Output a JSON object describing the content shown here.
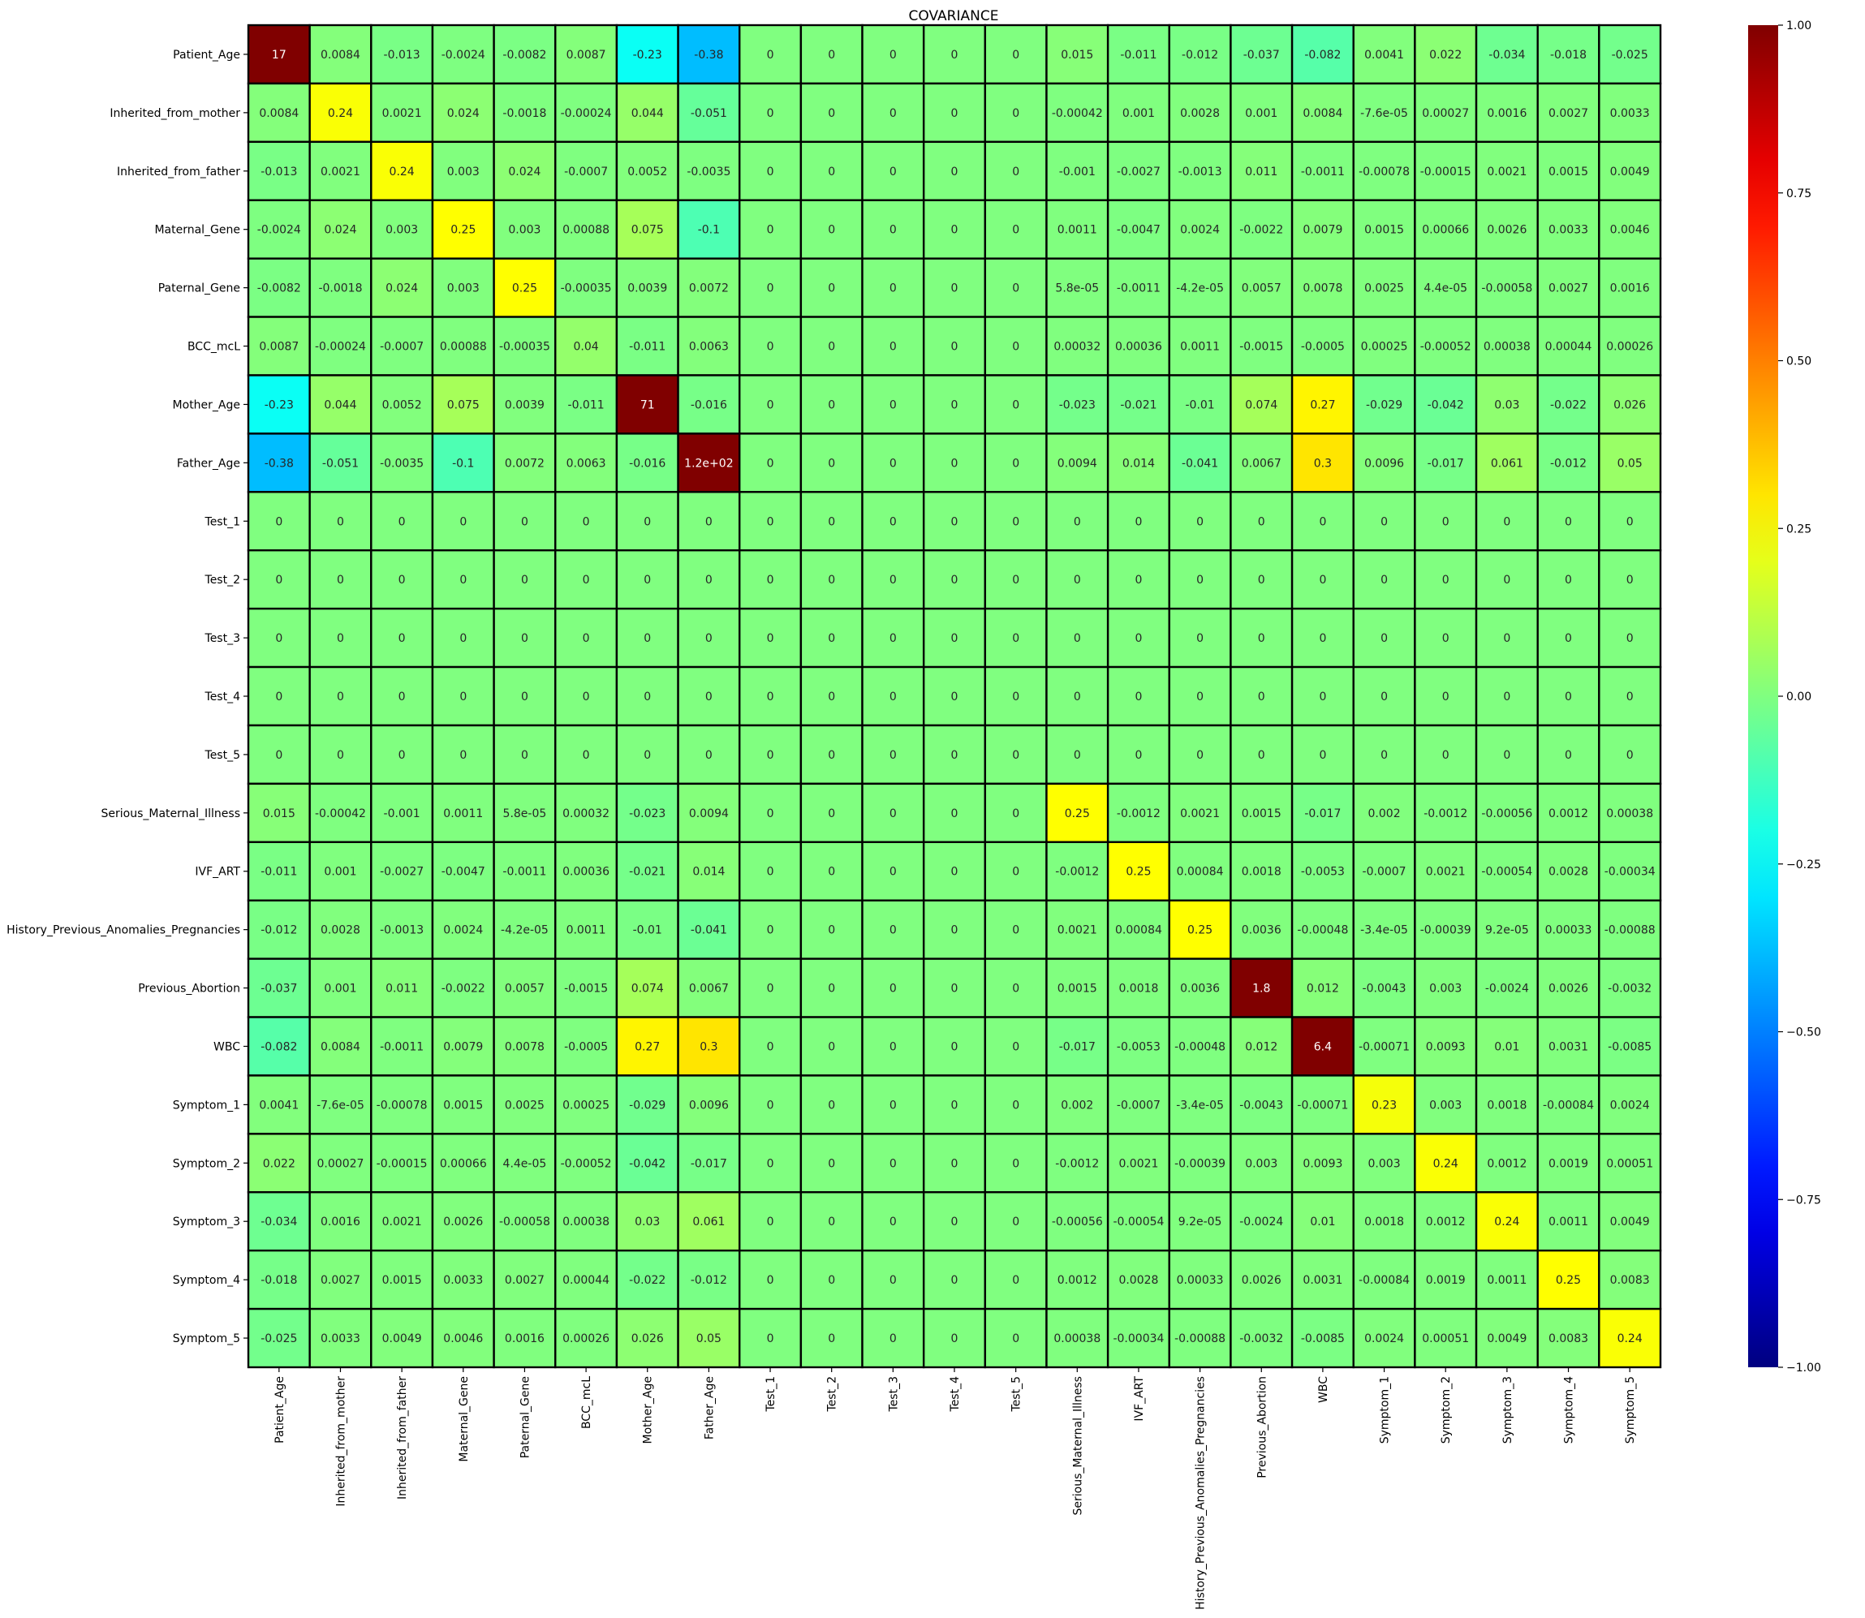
{
  "chart_data": {
    "type": "heatmap",
    "title": "COVARIANCE",
    "xlabel": "",
    "ylabel": "",
    "colormap": "jet",
    "vmin": -1.0,
    "vmax": 1.0,
    "colorbar_ticks": [
      -1.0,
      -0.75,
      -0.5,
      -0.25,
      0.0,
      0.25,
      0.5,
      0.75,
      1.0
    ],
    "colorbar_tick_labels": [
      "−1.00",
      "−0.75",
      "−0.50",
      "−0.25",
      "0.00",
      "0.25",
      "0.50",
      "0.75",
      "1.00"
    ],
    "legend_position": "right",
    "categories": [
      "Patient_Age",
      "Inherited_from_mother",
      "Inherited_from_father",
      "Maternal_Gene",
      "Paternal_Gene",
      "BCC_mcL",
      "Mother_Age",
      "Father_Age",
      "Test_1",
      "Test_2",
      "Test_3",
      "Test_4",
      "Test_5",
      "Serious_Maternal_Illness",
      "IVF_ART",
      "History_Previous_Anomalies_Pregnancies",
      "Previous_Abortion",
      "WBC",
      "Symptom_1",
      "Symptom_2",
      "Symptom_3",
      "Symptom_4",
      "Symptom_5"
    ],
    "values": [
      [
        17,
        0.0084,
        -0.013,
        -0.0024,
        -0.0082,
        0.0087,
        -0.23,
        -0.38,
        0,
        0,
        0,
        0,
        0,
        0.015,
        -0.011,
        -0.012,
        -0.037,
        -0.082,
        0.0041,
        0.022,
        -0.034,
        -0.018,
        -0.025
      ],
      [
        0.0084,
        0.24,
        0.0021,
        0.024,
        -0.0018,
        -0.00024,
        0.044,
        -0.051,
        0,
        0,
        0,
        0,
        0,
        -0.00042,
        0.001,
        0.0028,
        0.001,
        0.0084,
        -7.6e-05,
        0.00027,
        0.0016,
        0.0027,
        0.0033
      ],
      [
        -0.013,
        0.0021,
        0.24,
        0.003,
        0.024,
        -0.0007,
        0.0052,
        -0.0035,
        0,
        0,
        0,
        0,
        0,
        -0.001,
        -0.0027,
        -0.0013,
        0.011,
        -0.0011,
        -0.00078,
        -0.00015,
        0.0021,
        0.0015,
        0.0049
      ],
      [
        -0.0024,
        0.024,
        0.003,
        0.25,
        0.003,
        0.00088,
        0.075,
        -0.1,
        0,
        0,
        0,
        0,
        0,
        0.0011,
        -0.0047,
        0.0024,
        -0.0022,
        0.0079,
        0.0015,
        0.00066,
        0.0026,
        0.0033,
        0.0046
      ],
      [
        -0.0082,
        -0.0018,
        0.024,
        0.003,
        0.25,
        -0.00035,
        0.0039,
        0.0072,
        0,
        0,
        0,
        0,
        0,
        5.8e-05,
        -0.0011,
        -4.2e-05,
        0.0057,
        0.0078,
        0.0025,
        4.4e-05,
        -0.00058,
        0.0027,
        0.0016
      ],
      [
        0.0087,
        -0.00024,
        -0.0007,
        0.00088,
        -0.00035,
        0.04,
        -0.011,
        0.0063,
        0,
        0,
        0,
        0,
        0,
        0.00032,
        0.00036,
        0.0011,
        -0.0015,
        -0.0005,
        0.00025,
        -0.00052,
        0.00038,
        0.00044,
        0.00026
      ],
      [
        -0.23,
        0.044,
        0.0052,
        0.075,
        0.0039,
        -0.011,
        71,
        -0.016,
        0,
        0,
        0,
        0,
        0,
        -0.023,
        -0.021,
        -0.01,
        0.074,
        0.27,
        -0.029,
        -0.042,
        0.03,
        -0.022,
        0.026
      ],
      [
        -0.38,
        -0.051,
        -0.0035,
        -0.1,
        0.0072,
        0.0063,
        -0.016,
        120,
        0,
        0,
        0,
        0,
        0,
        0.0094,
        0.014,
        -0.041,
        0.0067,
        0.3,
        0.0096,
        -0.017,
        0.061,
        -0.012,
        0.05
      ],
      [
        0,
        0,
        0,
        0,
        0,
        0,
        0,
        0,
        0,
        0,
        0,
        0,
        0,
        0,
        0,
        0,
        0,
        0,
        0,
        0,
        0,
        0,
        0
      ],
      [
        0,
        0,
        0,
        0,
        0,
        0,
        0,
        0,
        0,
        0,
        0,
        0,
        0,
        0,
        0,
        0,
        0,
        0,
        0,
        0,
        0,
        0,
        0
      ],
      [
        0,
        0,
        0,
        0,
        0,
        0,
        0,
        0,
        0,
        0,
        0,
        0,
        0,
        0,
        0,
        0,
        0,
        0,
        0,
        0,
        0,
        0,
        0
      ],
      [
        0,
        0,
        0,
        0,
        0,
        0,
        0,
        0,
        0,
        0,
        0,
        0,
        0,
        0,
        0,
        0,
        0,
        0,
        0,
        0,
        0,
        0,
        0
      ],
      [
        0,
        0,
        0,
        0,
        0,
        0,
        0,
        0,
        0,
        0,
        0,
        0,
        0,
        0,
        0,
        0,
        0,
        0,
        0,
        0,
        0,
        0,
        0
      ],
      [
        0.015,
        -0.00042,
        -0.001,
        0.0011,
        5.8e-05,
        0.00032,
        -0.023,
        0.0094,
        0,
        0,
        0,
        0,
        0,
        0.25,
        -0.0012,
        0.0021,
        0.0015,
        -0.017,
        0.002,
        -0.0012,
        -0.00056,
        0.0012,
        0.00038
      ],
      [
        -0.011,
        0.001,
        -0.0027,
        -0.0047,
        -0.0011,
        0.00036,
        -0.021,
        0.014,
        0,
        0,
        0,
        0,
        0,
        -0.0012,
        0.25,
        0.00084,
        0.0018,
        -0.0053,
        -0.0007,
        0.0021,
        -0.00054,
        0.0028,
        -0.00034
      ],
      [
        -0.012,
        0.0028,
        -0.0013,
        0.0024,
        -4.2e-05,
        0.0011,
        -0.01,
        -0.041,
        0,
        0,
        0,
        0,
        0,
        0.0021,
        0.00084,
        0.25,
        0.0036,
        -0.00048,
        -3.4e-05,
        -0.00039,
        9.2e-05,
        0.00033,
        -0.00088
      ],
      [
        -0.037,
        0.001,
        0.011,
        -0.0022,
        0.0057,
        -0.0015,
        0.074,
        0.0067,
        0,
        0,
        0,
        0,
        0,
        0.0015,
        0.0018,
        0.0036,
        1.8,
        0.012,
        -0.0043,
        0.003,
        -0.0024,
        0.0026,
        -0.0032
      ],
      [
        -0.082,
        0.0084,
        -0.0011,
        0.0079,
        0.0078,
        -0.0005,
        0.27,
        0.3,
        0,
        0,
        0,
        0,
        0,
        -0.017,
        -0.0053,
        -0.00048,
        0.012,
        6.4,
        -0.00071,
        0.0093,
        0.01,
        0.0031,
        -0.0085
      ],
      [
        0.0041,
        -7.6e-05,
        -0.00078,
        0.0015,
        0.0025,
        0.00025,
        -0.029,
        0.0096,
        0,
        0,
        0,
        0,
        0,
        0.002,
        -0.0007,
        -3.4e-05,
        -0.0043,
        -0.00071,
        0.23,
        0.003,
        0.0018,
        -0.00084,
        0.0024
      ],
      [
        0.022,
        0.00027,
        -0.00015,
        0.00066,
        4.4e-05,
        -0.00052,
        -0.042,
        -0.017,
        0,
        0,
        0,
        0,
        0,
        -0.0012,
        0.0021,
        -0.00039,
        0.003,
        0.0093,
        0.003,
        0.24,
        0.0012,
        0.0019,
        0.00051
      ],
      [
        -0.034,
        0.0016,
        0.0021,
        0.0026,
        -0.00058,
        0.00038,
        0.03,
        0.061,
        0,
        0,
        0,
        0,
        0,
        -0.00056,
        -0.00054,
        9.2e-05,
        -0.0024,
        0.01,
        0.0018,
        0.0012,
        0.24,
        0.0011,
        0.0049
      ],
      [
        -0.018,
        0.0027,
        0.0015,
        0.0033,
        0.0027,
        0.00044,
        -0.022,
        -0.012,
        0,
        0,
        0,
        0,
        0,
        0.0012,
        0.0028,
        0.00033,
        0.0026,
        0.0031,
        -0.00084,
        0.0019,
        0.0011,
        0.25,
        0.0083
      ],
      [
        -0.025,
        0.0033,
        0.0049,
        0.0046,
        0.0016,
        0.00026,
        0.026,
        0.05,
        0,
        0,
        0,
        0,
        0,
        0.00038,
        -0.00034,
        -0.00088,
        -0.0032,
        -0.0085,
        0.0024,
        0.00051,
        0.0049,
        0.0083,
        0.24
      ]
    ],
    "labels": [
      [
        "17",
        "0.0084",
        "-0.013",
        "-0.0024",
        "-0.0082",
        "0.0087",
        "-0.23",
        "-0.38",
        "0",
        "0",
        "0",
        "0",
        "0",
        "0.015",
        "-0.011",
        "-0.012",
        "-0.037",
        "-0.082",
        "0.0041",
        "0.022",
        "-0.034",
        "-0.018",
        "-0.025"
      ],
      [
        "0.0084",
        "0.24",
        "0.0021",
        "0.024",
        "-0.0018",
        "-0.00024",
        "0.044",
        "-0.051",
        "0",
        "0",
        "0",
        "0",
        "0",
        "-0.00042",
        "0.001",
        "0.0028",
        "0.001",
        "0.0084",
        "-7.6e-05",
        "0.00027",
        "0.0016",
        "0.0027",
        "0.0033"
      ],
      [
        "-0.013",
        "0.0021",
        "0.24",
        "0.003",
        "0.024",
        "-0.0007",
        "0.0052",
        "-0.0035",
        "0",
        "0",
        "0",
        "0",
        "0",
        "-0.001",
        "-0.0027",
        "-0.0013",
        "0.011",
        "-0.0011",
        "-0.00078",
        "-0.00015",
        "0.0021",
        "0.0015",
        "0.0049"
      ],
      [
        "-0.0024",
        "0.024",
        "0.003",
        "0.25",
        "0.003",
        "0.00088",
        "0.075",
        "-0.1",
        "0",
        "0",
        "0",
        "0",
        "0",
        "0.0011",
        "-0.0047",
        "0.0024",
        "-0.0022",
        "0.0079",
        "0.0015",
        "0.00066",
        "0.0026",
        "0.0033",
        "0.0046"
      ],
      [
        "-0.0082",
        "-0.0018",
        "0.024",
        "0.003",
        "0.25",
        "-0.00035",
        "0.0039",
        "0.0072",
        "0",
        "0",
        "0",
        "0",
        "0",
        "5.8e-05",
        "-0.0011",
        "-4.2e-05",
        "0.0057",
        "0.0078",
        "0.0025",
        "4.4e-05",
        "-0.00058",
        "0.0027",
        "0.0016"
      ],
      [
        "0.0087",
        "-0.00024",
        "-0.0007",
        "0.00088",
        "-0.00035",
        "0.04",
        "-0.011",
        "0.0063",
        "0",
        "0",
        "0",
        "0",
        "0",
        "0.00032",
        "0.00036",
        "0.0011",
        "-0.0015",
        "-0.0005",
        "0.00025",
        "-0.00052",
        "0.00038",
        "0.00044",
        "0.00026"
      ],
      [
        "-0.23",
        "0.044",
        "0.0052",
        "0.075",
        "0.0039",
        "-0.011",
        "71",
        "-0.016",
        "0",
        "0",
        "0",
        "0",
        "0",
        "-0.023",
        "-0.021",
        "-0.01",
        "0.074",
        "0.27",
        "-0.029",
        "-0.042",
        "0.03",
        "-0.022",
        "0.026"
      ],
      [
        "-0.38",
        "-0.051",
        "-0.0035",
        "-0.1",
        "0.0072",
        "0.0063",
        "-0.016",
        "1.2e+02",
        "0",
        "0",
        "0",
        "0",
        "0",
        "0.0094",
        "0.014",
        "-0.041",
        "0.0067",
        "0.3",
        "0.0096",
        "-0.017",
        "0.061",
        "-0.012",
        "0.05"
      ],
      [
        "0",
        "0",
        "0",
        "0",
        "0",
        "0",
        "0",
        "0",
        "0",
        "0",
        "0",
        "0",
        "0",
        "0",
        "0",
        "0",
        "0",
        "0",
        "0",
        "0",
        "0",
        "0",
        "0"
      ],
      [
        "0",
        "0",
        "0",
        "0",
        "0",
        "0",
        "0",
        "0",
        "0",
        "0",
        "0",
        "0",
        "0",
        "0",
        "0",
        "0",
        "0",
        "0",
        "0",
        "0",
        "0",
        "0",
        "0"
      ],
      [
        "0",
        "0",
        "0",
        "0",
        "0",
        "0",
        "0",
        "0",
        "0",
        "0",
        "0",
        "0",
        "0",
        "0",
        "0",
        "0",
        "0",
        "0",
        "0",
        "0",
        "0",
        "0",
        "0"
      ],
      [
        "0",
        "0",
        "0",
        "0",
        "0",
        "0",
        "0",
        "0",
        "0",
        "0",
        "0",
        "0",
        "0",
        "0",
        "0",
        "0",
        "0",
        "0",
        "0",
        "0",
        "0",
        "0",
        "0"
      ],
      [
        "0",
        "0",
        "0",
        "0",
        "0",
        "0",
        "0",
        "0",
        "0",
        "0",
        "0",
        "0",
        "0",
        "0",
        "0",
        "0",
        "0",
        "0",
        "0",
        "0",
        "0",
        "0",
        "0"
      ],
      [
        "0.015",
        "-0.00042",
        "-0.001",
        "0.0011",
        "5.8e-05",
        "0.00032",
        "-0.023",
        "0.0094",
        "0",
        "0",
        "0",
        "0",
        "0",
        "0.25",
        "-0.0012",
        "0.0021",
        "0.0015",
        "-0.017",
        "0.002",
        "-0.0012",
        "-0.00056",
        "0.0012",
        "0.00038"
      ],
      [
        "-0.011",
        "0.001",
        "-0.0027",
        "-0.0047",
        "-0.0011",
        "0.00036",
        "-0.021",
        "0.014",
        "0",
        "0",
        "0",
        "0",
        "0",
        "-0.0012",
        "0.25",
        "0.00084",
        "0.0018",
        "-0.0053",
        "-0.0007",
        "0.0021",
        "-0.00054",
        "0.0028",
        "-0.00034"
      ],
      [
        "-0.012",
        "0.0028",
        "-0.0013",
        "0.0024",
        "-4.2e-05",
        "0.0011",
        "-0.01",
        "-0.041",
        "0",
        "0",
        "0",
        "0",
        "0",
        "0.0021",
        "0.00084",
        "0.25",
        "0.0036",
        "-0.00048",
        "-3.4e-05",
        "-0.00039",
        "9.2e-05",
        "0.00033",
        "-0.00088"
      ],
      [
        "-0.037",
        "0.001",
        "0.011",
        "-0.0022",
        "0.0057",
        "-0.0015",
        "0.074",
        "0.0067",
        "0",
        "0",
        "0",
        "0",
        "0",
        "0.0015",
        "0.0018",
        "0.0036",
        "1.8",
        "0.012",
        "-0.0043",
        "0.003",
        "-0.0024",
        "0.0026",
        "-0.0032"
      ],
      [
        "-0.082",
        "0.0084",
        "-0.0011",
        "0.0079",
        "0.0078",
        "-0.0005",
        "0.27",
        "0.3",
        "0",
        "0",
        "0",
        "0",
        "0",
        "-0.017",
        "-0.0053",
        "-0.00048",
        "0.012",
        "6.4",
        "-0.00071",
        "0.0093",
        "0.01",
        "0.0031",
        "-0.0085"
      ],
      [
        "0.0041",
        "-7.6e-05",
        "-0.00078",
        "0.0015",
        "0.0025",
        "0.00025",
        "-0.029",
        "0.0096",
        "0",
        "0",
        "0",
        "0",
        "0",
        "0.002",
        "-0.0007",
        "-3.4e-05",
        "-0.0043",
        "-0.00071",
        "0.23",
        "0.003",
        "0.0018",
        "-0.00084",
        "0.0024"
      ],
      [
        "0.022",
        "0.00027",
        "-0.00015",
        "0.00066",
        "4.4e-05",
        "-0.00052",
        "-0.042",
        "-0.017",
        "0",
        "0",
        "0",
        "0",
        "0",
        "-0.0012",
        "0.0021",
        "-0.00039",
        "0.003",
        "0.0093",
        "0.003",
        "0.24",
        "0.0012",
        "0.0019",
        "0.00051"
      ],
      [
        "-0.034",
        "0.0016",
        "0.0021",
        "0.0026",
        "-0.00058",
        "0.00038",
        "0.03",
        "0.061",
        "0",
        "0",
        "0",
        "0",
        "0",
        "-0.00056",
        "-0.00054",
        "9.2e-05",
        "-0.0024",
        "0.01",
        "0.0018",
        "0.0012",
        "0.24",
        "0.0011",
        "0.0049"
      ],
      [
        "-0.018",
        "0.0027",
        "0.0015",
        "0.0033",
        "0.0027",
        "0.00044",
        "-0.022",
        "-0.012",
        "0",
        "0",
        "0",
        "0",
        "0",
        "0.0012",
        "0.0028",
        "0.00033",
        "0.0026",
        "0.0031",
        "-0.00084",
        "0.0019",
        "0.0011",
        "0.25",
        "0.0083"
      ],
      [
        "-0.025",
        "0.0033",
        "0.0049",
        "0.0046",
        "0.0016",
        "0.00026",
        "0.026",
        "0.05",
        "0",
        "0",
        "0",
        "0",
        "0",
        "0.00038",
        "-0.00034",
        "-0.00088",
        "-0.0032",
        "-0.0085",
        "0.0024",
        "0.00051",
        "0.0049",
        "0.0083",
        "0.24"
      ]
    ]
  }
}
